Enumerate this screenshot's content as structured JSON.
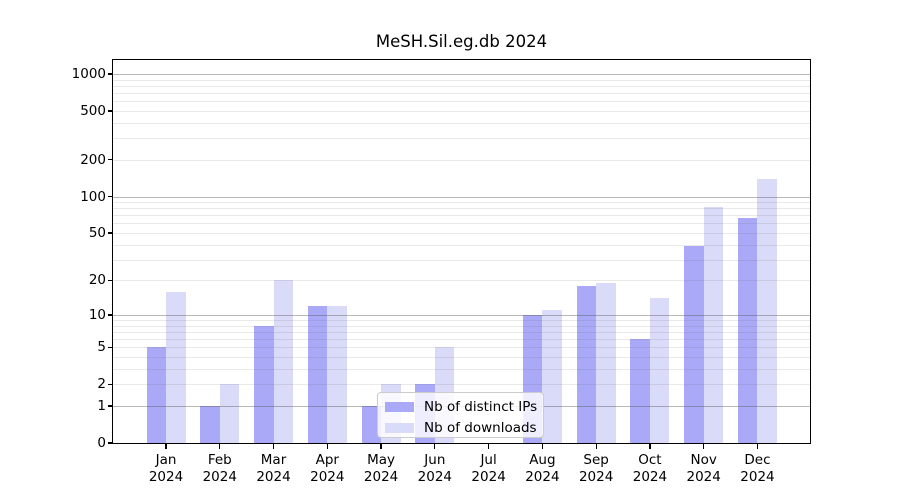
{
  "chart_data": {
    "type": "bar",
    "title": "MeSH.Sil.eg.db 2024",
    "categories": [
      "Jan",
      "Feb",
      "Mar",
      "Apr",
      "May",
      "Jun",
      "Jul",
      "Aug",
      "Sep",
      "Oct",
      "Nov",
      "Dec"
    ],
    "year": "2024",
    "series": [
      {
        "name": "Nb of distinct IPs",
        "color": "#a9a9f7",
        "values": [
          5,
          1,
          8,
          12,
          1,
          2,
          0,
          10,
          18,
          6,
          39,
          67
        ]
      },
      {
        "name": "Nb of downloads",
        "color": "#dadaf9",
        "values": [
          16,
          2,
          20,
          12,
          2,
          5,
          0,
          11,
          19,
          14,
          82,
          140
        ]
      }
    ],
    "yscale": "log1p",
    "ylim": [
      0,
      1300
    ],
    "yticks": [
      0,
      1,
      2,
      5,
      10,
      20,
      50,
      100,
      200,
      500,
      1000
    ],
    "grid_major": [
      1,
      10,
      100,
      1000
    ],
    "grid_minor": [
      2,
      3,
      4,
      5,
      6,
      7,
      8,
      9,
      20,
      30,
      40,
      50,
      60,
      70,
      80,
      90,
      200,
      300,
      400,
      500,
      600,
      700,
      800,
      900
    ],
    "legend": {
      "position": "lower-center-left",
      "labels": [
        "Nb of distinct IPs",
        "Nb of downloads"
      ]
    },
    "xlabel": "",
    "ylabel": ""
  },
  "colors": {
    "ips_bar": "#a9a9f7",
    "downloads_bar": "#dadaf9",
    "grid_major": "#b0b0b0",
    "grid_minor": "#e8e8e8",
    "frame": "#000000",
    "background": "#ffffff"
  }
}
